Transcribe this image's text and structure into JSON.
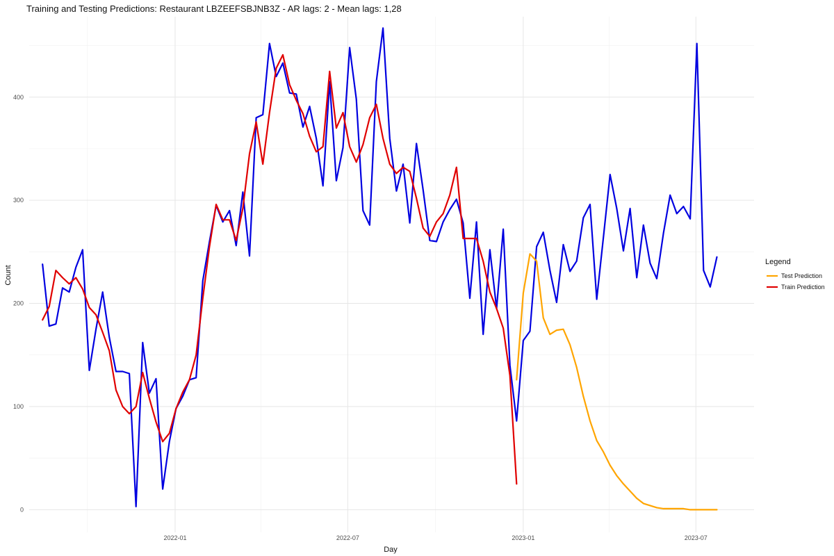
{
  "chart_data": {
    "type": "line",
    "title": "Training and Testing Predictions: Restaurant LBZEEFSBJNB3Z - AR lags: 2 - Mean lags: 1,28",
    "xlabel": "Day",
    "ylabel": "Count",
    "x_ticks": [
      "2022-01",
      "2022-07",
      "2023-01",
      "2023-07"
    ],
    "y_ticks": [
      0,
      100,
      200,
      300,
      400
    ],
    "xlim": [
      "2021-08-01",
      "2023-08-31"
    ],
    "ylim": [
      -22,
      478
    ],
    "grid": true,
    "legend": {
      "title": "Legend",
      "position": "right",
      "entries": [
        {
          "label": "Test Prediction",
          "color": "#FFA500"
        },
        {
          "label": "Train Prediction",
          "color": "#E00000"
        }
      ]
    },
    "series": [
      {
        "role": "actual",
        "color": "#0000E0",
        "points": [
          [
            "2021-08-15",
            238
          ],
          [
            "2021-08-22",
            178
          ],
          [
            "2021-08-29",
            180
          ],
          [
            "2021-09-05",
            215
          ],
          [
            "2021-09-12",
            211
          ],
          [
            "2021-09-19",
            235
          ],
          [
            "2021-09-26",
            252
          ],
          [
            "2021-10-03",
            135
          ],
          [
            "2021-10-10",
            175
          ],
          [
            "2021-10-17",
            211
          ],
          [
            "2021-10-24",
            167
          ],
          [
            "2021-10-31",
            134
          ],
          [
            "2021-11-07",
            134
          ],
          [
            "2021-11-14",
            132
          ],
          [
            "2021-11-21",
            3
          ],
          [
            "2021-11-28",
            162
          ],
          [
            "2021-12-05",
            113
          ],
          [
            "2021-12-12",
            127
          ],
          [
            "2021-12-19",
            20
          ],
          [
            "2021-12-26",
            66
          ],
          [
            "2022-01-02",
            98
          ],
          [
            "2022-01-09",
            110
          ],
          [
            "2022-01-16",
            126
          ],
          [
            "2022-01-23",
            128
          ],
          [
            "2022-01-30",
            222
          ],
          [
            "2022-02-06",
            260
          ],
          [
            "2022-02-13",
            295
          ],
          [
            "2022-02-20",
            279
          ],
          [
            "2022-02-27",
            290
          ],
          [
            "2022-03-06",
            256
          ],
          [
            "2022-03-13",
            308
          ],
          [
            "2022-03-20",
            246
          ],
          [
            "2022-03-27",
            380
          ],
          [
            "2022-04-03",
            383
          ],
          [
            "2022-04-10",
            452
          ],
          [
            "2022-04-17",
            420
          ],
          [
            "2022-04-24",
            433
          ],
          [
            "2022-05-01",
            404
          ],
          [
            "2022-05-08",
            403
          ],
          [
            "2022-05-15",
            371
          ],
          [
            "2022-05-22",
            391
          ],
          [
            "2022-05-29",
            360
          ],
          [
            "2022-06-05",
            314
          ],
          [
            "2022-06-12",
            415
          ],
          [
            "2022-06-19",
            319
          ],
          [
            "2022-06-26",
            351
          ],
          [
            "2022-07-03",
            448
          ],
          [
            "2022-07-10",
            398
          ],
          [
            "2022-07-17",
            290
          ],
          [
            "2022-07-24",
            276
          ],
          [
            "2022-07-31",
            415
          ],
          [
            "2022-08-07",
            467
          ],
          [
            "2022-08-14",
            360
          ],
          [
            "2022-08-21",
            309
          ],
          [
            "2022-08-28",
            335
          ],
          [
            "2022-09-04",
            278
          ],
          [
            "2022-09-11",
            355
          ],
          [
            "2022-09-18",
            310
          ],
          [
            "2022-09-25",
            261
          ],
          [
            "2022-10-02",
            260
          ],
          [
            "2022-10-09",
            279
          ],
          [
            "2022-10-16",
            291
          ],
          [
            "2022-10-23",
            301
          ],
          [
            "2022-10-30",
            278
          ],
          [
            "2022-11-06",
            205
          ],
          [
            "2022-11-13",
            279
          ],
          [
            "2022-11-20",
            170
          ],
          [
            "2022-11-27",
            252
          ],
          [
            "2022-12-04",
            195
          ],
          [
            "2022-12-11",
            272
          ],
          [
            "2022-12-18",
            140
          ],
          [
            "2022-12-25",
            86
          ],
          [
            "2023-01-01",
            164
          ],
          [
            "2023-01-08",
            173
          ],
          [
            "2023-01-15",
            255
          ],
          [
            "2023-01-22",
            269
          ],
          [
            "2023-01-29",
            232
          ],
          [
            "2023-02-05",
            201
          ],
          [
            "2023-02-12",
            257
          ],
          [
            "2023-02-19",
            231
          ],
          [
            "2023-02-26",
            241
          ],
          [
            "2023-03-05",
            283
          ],
          [
            "2023-03-12",
            296
          ],
          [
            "2023-03-19",
            204
          ],
          [
            "2023-03-26",
            264
          ],
          [
            "2023-04-02",
            325
          ],
          [
            "2023-04-09",
            292
          ],
          [
            "2023-04-16",
            251
          ],
          [
            "2023-04-23",
            292
          ],
          [
            "2023-04-30",
            225
          ],
          [
            "2023-05-07",
            276
          ],
          [
            "2023-05-14",
            239
          ],
          [
            "2023-05-21",
            224
          ],
          [
            "2023-05-28",
            268
          ],
          [
            "2023-06-04",
            305
          ],
          [
            "2023-06-11",
            287
          ],
          [
            "2023-06-18",
            294
          ],
          [
            "2023-06-25",
            282
          ],
          [
            "2023-07-02",
            452
          ],
          [
            "2023-07-09",
            232
          ],
          [
            "2023-07-16",
            216
          ],
          [
            "2023-07-23",
            245
          ]
        ]
      },
      {
        "name": "Train Prediction",
        "color": "#E00000",
        "points": [
          [
            "2021-08-15",
            184
          ],
          [
            "2021-08-22",
            197
          ],
          [
            "2021-08-29",
            232
          ],
          [
            "2021-09-05",
            225
          ],
          [
            "2021-09-12",
            219
          ],
          [
            "2021-09-19",
            225
          ],
          [
            "2021-09-26",
            214
          ],
          [
            "2021-10-03",
            196
          ],
          [
            "2021-10-10",
            189
          ],
          [
            "2021-10-17",
            172
          ],
          [
            "2021-10-24",
            154
          ],
          [
            "2021-10-31",
            116
          ],
          [
            "2021-11-07",
            100
          ],
          [
            "2021-11-14",
            93
          ],
          [
            "2021-11-21",
            100
          ],
          [
            "2021-11-28",
            133
          ],
          [
            "2021-12-05",
            108
          ],
          [
            "2021-12-12",
            85
          ],
          [
            "2021-12-19",
            66
          ],
          [
            "2021-12-26",
            74
          ],
          [
            "2022-01-02",
            98
          ],
          [
            "2022-01-09",
            114
          ],
          [
            "2022-01-16",
            126
          ],
          [
            "2022-01-23",
            150
          ],
          [
            "2022-01-30",
            205
          ],
          [
            "2022-02-06",
            255
          ],
          [
            "2022-02-13",
            296
          ],
          [
            "2022-02-20",
            281
          ],
          [
            "2022-02-27",
            281
          ],
          [
            "2022-03-06",
            261
          ],
          [
            "2022-03-13",
            292
          ],
          [
            "2022-03-20",
            345
          ],
          [
            "2022-03-27",
            376
          ],
          [
            "2022-04-03",
            335
          ],
          [
            "2022-04-10",
            385
          ],
          [
            "2022-04-17",
            428
          ],
          [
            "2022-04-24",
            441
          ],
          [
            "2022-05-01",
            412
          ],
          [
            "2022-05-08",
            397
          ],
          [
            "2022-05-15",
            384
          ],
          [
            "2022-05-22",
            362
          ],
          [
            "2022-05-29",
            347
          ],
          [
            "2022-06-05",
            352
          ],
          [
            "2022-06-12",
            425
          ],
          [
            "2022-06-19",
            370
          ],
          [
            "2022-06-26",
            385
          ],
          [
            "2022-07-03",
            352
          ],
          [
            "2022-07-10",
            337
          ],
          [
            "2022-07-17",
            354
          ],
          [
            "2022-07-24",
            380
          ],
          [
            "2022-07-31",
            393
          ],
          [
            "2022-08-07",
            360
          ],
          [
            "2022-08-14",
            335
          ],
          [
            "2022-08-21",
            326
          ],
          [
            "2022-08-28",
            332
          ],
          [
            "2022-09-04",
            328
          ],
          [
            "2022-09-11",
            302
          ],
          [
            "2022-09-18",
            273
          ],
          [
            "2022-09-25",
            265
          ],
          [
            "2022-10-02",
            279
          ],
          [
            "2022-10-09",
            287
          ],
          [
            "2022-10-16",
            305
          ],
          [
            "2022-10-23",
            332
          ],
          [
            "2022-10-30",
            263
          ],
          [
            "2022-11-06",
            263
          ],
          [
            "2022-11-13",
            263
          ],
          [
            "2022-11-20",
            241
          ],
          [
            "2022-11-27",
            211
          ],
          [
            "2022-12-04",
            195
          ],
          [
            "2022-12-11",
            176
          ],
          [
            "2022-12-18",
            130
          ],
          [
            "2022-12-25",
            25
          ]
        ]
      },
      {
        "name": "Test Prediction",
        "color": "#FFA500",
        "points": [
          [
            "2022-12-25",
            126
          ],
          [
            "2023-01-01",
            210
          ],
          [
            "2023-01-08",
            248
          ],
          [
            "2023-01-15",
            241
          ],
          [
            "2023-01-22",
            186
          ],
          [
            "2023-01-29",
            170
          ],
          [
            "2023-02-05",
            174
          ],
          [
            "2023-02-12",
            175
          ],
          [
            "2023-02-19",
            160
          ],
          [
            "2023-02-26",
            138
          ],
          [
            "2023-03-05",
            110
          ],
          [
            "2023-03-12",
            86
          ],
          [
            "2023-03-19",
            67
          ],
          [
            "2023-03-26",
            56
          ],
          [
            "2023-04-02",
            43
          ],
          [
            "2023-04-09",
            33
          ],
          [
            "2023-04-16",
            25
          ],
          [
            "2023-04-23",
            18
          ],
          [
            "2023-04-30",
            11
          ],
          [
            "2023-05-07",
            6
          ],
          [
            "2023-05-14",
            4
          ],
          [
            "2023-05-21",
            2
          ],
          [
            "2023-05-28",
            1
          ],
          [
            "2023-06-04",
            1
          ],
          [
            "2023-06-11",
            1
          ],
          [
            "2023-06-18",
            1
          ],
          [
            "2023-06-25",
            0
          ],
          [
            "2023-07-02",
            0
          ],
          [
            "2023-07-09",
            0
          ],
          [
            "2023-07-16",
            0
          ],
          [
            "2023-07-23",
            0
          ]
        ]
      }
    ]
  }
}
